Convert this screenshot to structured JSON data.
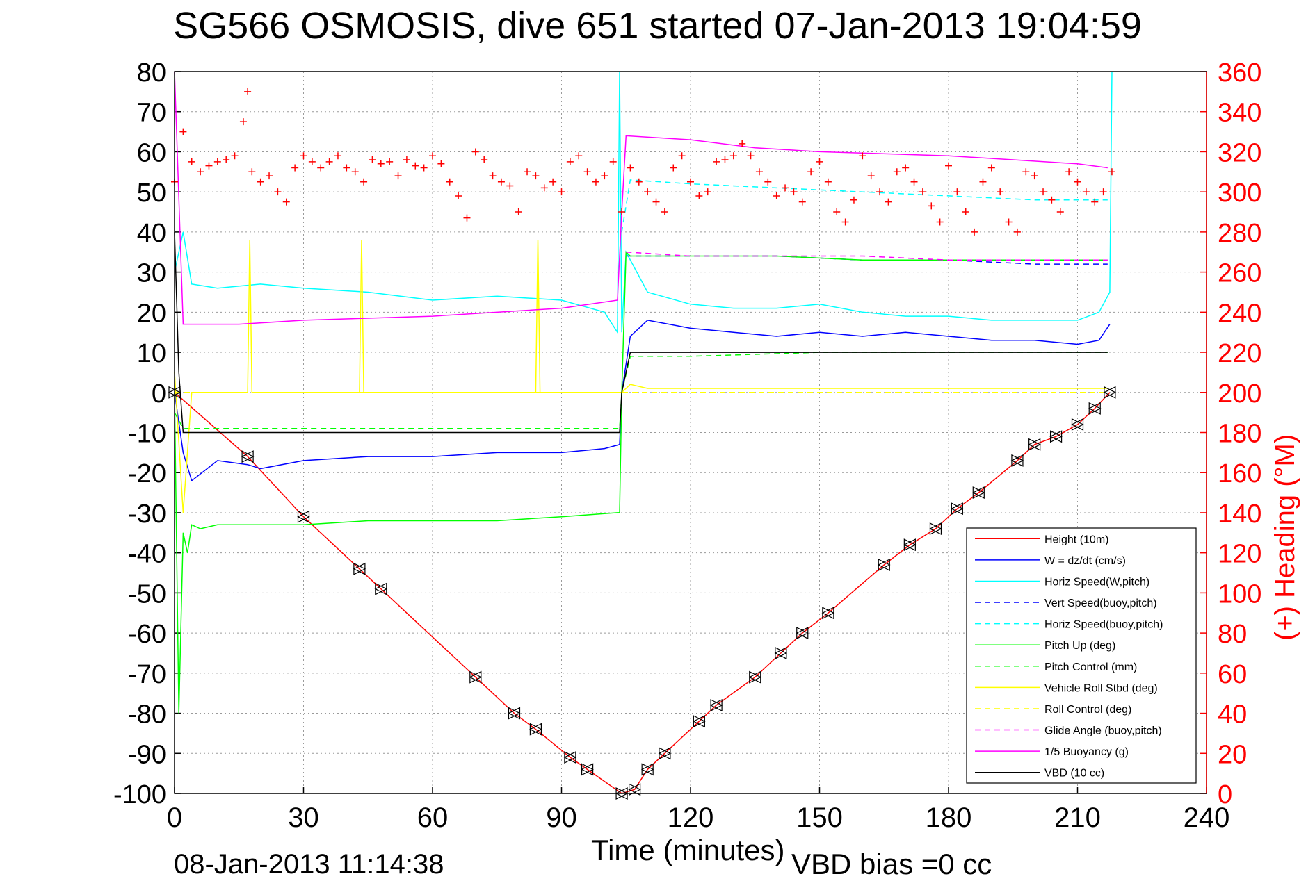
{
  "header": {
    "title": "SG566 OSMOSIS, dive 651 started 07-Jan-2013 19:04:59"
  },
  "footer": {
    "timestamp": "08-Jan-2013 11:14:38",
    "vbd_bias": "VBD bias =0 cc"
  },
  "chart_data": {
    "type": "line",
    "title": "SG566 OSMOSIS, dive 651 started 07-Jan-2013 19:04:59",
    "xlabel": "Time (minutes)",
    "ylabel": "",
    "ylabel_right": "(+) Heading (°M)",
    "xlim": [
      0,
      240
    ],
    "ylim": [
      -100,
      80
    ],
    "ylim_right": [
      0,
      360
    ],
    "xticks": [
      "0",
      "30",
      "60",
      "90",
      "120",
      "150",
      "180",
      "210",
      "240"
    ],
    "yticks": [
      "80",
      "70",
      "60",
      "50",
      "40",
      "30",
      "20",
      "10",
      "0",
      "-10",
      "-20",
      "-30",
      "-40",
      "-50",
      "-60",
      "-70",
      "-80",
      "-90",
      "-100"
    ],
    "yticks_right": [
      "360",
      "340",
      "320",
      "300",
      "280",
      "260",
      "240",
      "220",
      "200",
      "180",
      "160",
      "140",
      "120",
      "100",
      "80",
      "60",
      "40",
      "20",
      "0"
    ],
    "grid": true,
    "legend_position": "bottom-right",
    "series": [
      {
        "name": "Height (10m)",
        "color": "#ff0000",
        "style": "solid",
        "x": [
          0,
          17,
          30,
          43,
          48,
          70,
          79,
          84,
          92,
          96,
          104,
          107,
          110,
          114,
          122,
          126,
          135,
          141,
          146,
          152,
          165,
          171,
          177,
          182,
          187,
          196,
          200,
          205,
          210,
          214,
          217.5
        ],
        "y": [
          0,
          -16,
          -31,
          -44,
          -49,
          -71,
          -80,
          -84,
          -91,
          -94,
          -100,
          -99,
          -94,
          -90,
          -82,
          -78,
          -71,
          -65,
          -60,
          -55,
          -43,
          -38,
          -34,
          -29,
          -25,
          -17,
          -13,
          -11,
          -8,
          -4,
          0
        ]
      },
      {
        "name": "W = dz/dt (cm/s)",
        "color": "#0000ff",
        "style": "solid",
        "x": [
          0,
          2,
          4,
          10,
          17,
          20,
          30,
          45,
          60,
          75,
          90,
          100,
          103.5,
          104,
          106,
          110,
          120,
          130,
          140,
          150,
          160,
          170,
          180,
          190,
          200,
          210,
          215,
          217.5
        ],
        "y": [
          0,
          -15,
          -22,
          -17,
          -18,
          -19,
          -17,
          -16,
          -16,
          -15,
          -15,
          -14,
          -13,
          0,
          14,
          18,
          16,
          15,
          14,
          15,
          14,
          15,
          14,
          13,
          13,
          12,
          13,
          17
        ]
      },
      {
        "name": "Horiz Speed(W,pitch)",
        "color": "#00ffff",
        "style": "solid",
        "x": [
          0,
          2,
          4,
          10,
          20,
          30,
          45,
          60,
          75,
          90,
          100,
          103,
          103.5,
          104,
          105,
          110,
          120,
          130,
          140,
          150,
          160,
          170,
          180,
          190,
          200,
          210,
          215,
          217.5,
          218
        ],
        "y": [
          30,
          40,
          27,
          26,
          27,
          26,
          25,
          23,
          24,
          23,
          20,
          15,
          80,
          15,
          35,
          25,
          22,
          21,
          21,
          22,
          20,
          19,
          19,
          18,
          18,
          18,
          20,
          25,
          80
        ]
      },
      {
        "name": "Vert Speed(buoy,pitch)",
        "color": "#0000ff",
        "style": "dashed",
        "x": [
          105,
          120,
          140,
          160,
          180,
          200,
          217
        ],
        "y": [
          34,
          34,
          34,
          33,
          33,
          32,
          32
        ]
      },
      {
        "name": "Horiz Speed(buoy,pitch)",
        "color": "#00ffff",
        "style": "dashed",
        "x": [
          104,
          106,
          120,
          140,
          160,
          180,
          200,
          217
        ],
        "y": [
          40,
          53,
          52,
          51,
          50,
          49,
          48,
          48
        ]
      },
      {
        "name": "Pitch Up (deg)",
        "color": "#00ff00",
        "style": "solid",
        "x": [
          0,
          1,
          2,
          3,
          4,
          6,
          10,
          20,
          30,
          45,
          60,
          75,
          90,
          103,
          103.5,
          104,
          105,
          106,
          120,
          140,
          160,
          180,
          200,
          217
        ],
        "y": [
          0,
          -80,
          -35,
          -40,
          -33,
          -34,
          -33,
          -33,
          -33,
          -32,
          -32,
          -32,
          -31,
          -30,
          -30,
          0,
          35,
          34,
          34,
          34,
          33,
          33,
          33,
          33
        ]
      },
      {
        "name": "Pitch Control (mm)",
        "color": "#00ff00",
        "style": "dashed",
        "x": [
          0,
          2,
          10,
          30,
          60,
          90,
          103.5,
          104,
          106,
          120,
          150,
          180,
          210,
          217
        ],
        "y": [
          -5,
          -9,
          -9,
          -9,
          -9,
          -9,
          -9,
          0,
          9,
          9,
          10,
          10,
          10,
          10
        ]
      },
      {
        "name": "Vehicle Roll Stbd (deg)",
        "color": "#ffff00",
        "style": "solid",
        "x": [
          0,
          2,
          4,
          10,
          17,
          17.5,
          18,
          43,
          43.5,
          44,
          84,
          84.5,
          85,
          104,
          106,
          110,
          120,
          130,
          140,
          150,
          160,
          170,
          180,
          190,
          200,
          210,
          217
        ],
        "y": [
          5,
          -30,
          0,
          0,
          0,
          38,
          0,
          0,
          38,
          0,
          0,
          38,
          0,
          0,
          2,
          1,
          1,
          1,
          1,
          1,
          1,
          1,
          1,
          1,
          1,
          1,
          1
        ]
      },
      {
        "name": "Roll Control (deg)",
        "color": "#ffff00",
        "style": "dashed",
        "x": [
          0,
          3,
          10,
          30,
          60,
          90,
          103,
          104,
          120,
          150,
          180,
          210,
          217
        ],
        "y": [
          0,
          0,
          0,
          0,
          0,
          0,
          0,
          0,
          0,
          0,
          0,
          0,
          0
        ]
      },
      {
        "name": "Glide Angle (buoy,pitch)",
        "color": "#ff00ff",
        "style": "dashed",
        "x": [
          105,
          120,
          140,
          160,
          180,
          200,
          217
        ],
        "y": [
          35,
          34,
          34,
          34,
          33,
          33,
          33
        ]
      },
      {
        "name": "1/5 Buoyancy (g)",
        "color": "#ff00ff",
        "style": "solid",
        "x": [
          0,
          2,
          15,
          30,
          60,
          90,
          103,
          104,
          105,
          120,
          135,
          150,
          180,
          210,
          217
        ],
        "y": [
          80,
          17,
          17,
          18,
          19,
          21,
          23,
          45,
          64,
          63,
          61,
          60,
          59,
          57,
          56
        ]
      },
      {
        "name": "VBD (10 cc)",
        "color": "#000000",
        "style": "solid",
        "x": [
          0,
          1,
          2,
          10,
          30,
          60,
          90,
          103.5,
          104,
          106,
          107,
          120,
          150,
          180,
          210,
          217
        ],
        "y": [
          40,
          5,
          -10,
          -10,
          -10,
          -10,
          -10,
          -10,
          0,
          10,
          10,
          10,
          10,
          10,
          10,
          10
        ]
      },
      {
        "name": "(+) Heading (°M)",
        "color": "#ff0000",
        "style": "markers",
        "axis": "right",
        "x": [
          0,
          2,
          4,
          6,
          8,
          10,
          12,
          14,
          16,
          17,
          18,
          20,
          22,
          24,
          26,
          28,
          30,
          32,
          34,
          36,
          38,
          40,
          42,
          44,
          46,
          48,
          50,
          52,
          54,
          56,
          58,
          60,
          62,
          64,
          66,
          68,
          70,
          72,
          74,
          76,
          78,
          80,
          82,
          84,
          86,
          88,
          90,
          92,
          94,
          96,
          98,
          100,
          102,
          104,
          106,
          108,
          110,
          112,
          114,
          116,
          118,
          120,
          122,
          124,
          126,
          128,
          130,
          132,
          134,
          136,
          138,
          140,
          142,
          144,
          146,
          148,
          150,
          152,
          154,
          156,
          158,
          160,
          162,
          164,
          166,
          168,
          170,
          172,
          174,
          176,
          178,
          180,
          182,
          184,
          186,
          188,
          190,
          192,
          194,
          196,
          198,
          200,
          202,
          204,
          206,
          208,
          210,
          212,
          214,
          216,
          218
        ],
        "y": [
          305,
          330,
          315,
          310,
          313,
          315,
          316,
          318,
          335,
          350,
          310,
          305,
          308,
          300,
          295,
          312,
          318,
          315,
          312,
          315,
          318,
          312,
          310,
          305,
          316,
          314,
          315,
          308,
          316,
          313,
          312,
          318,
          314,
          305,
          298,
          287,
          320,
          316,
          308,
          305,
          303,
          290,
          310,
          308,
          302,
          305,
          300,
          315,
          318,
          310,
          305,
          308,
          315,
          290,
          312,
          305,
          300,
          295,
          290,
          312,
          318,
          305,
          298,
          300,
          315,
          316,
          318,
          324,
          318,
          310,
          305,
          298,
          302,
          300,
          295,
          310,
          315,
          305,
          290,
          285,
          296,
          318,
          308,
          300,
          295,
          310,
          312,
          305,
          300,
          293,
          285,
          313,
          300,
          290,
          280,
          305,
          312,
          300,
          285,
          280,
          310,
          308,
          300,
          296,
          290,
          310,
          305,
          300,
          295,
          300,
          310
        ]
      }
    ]
  }
}
